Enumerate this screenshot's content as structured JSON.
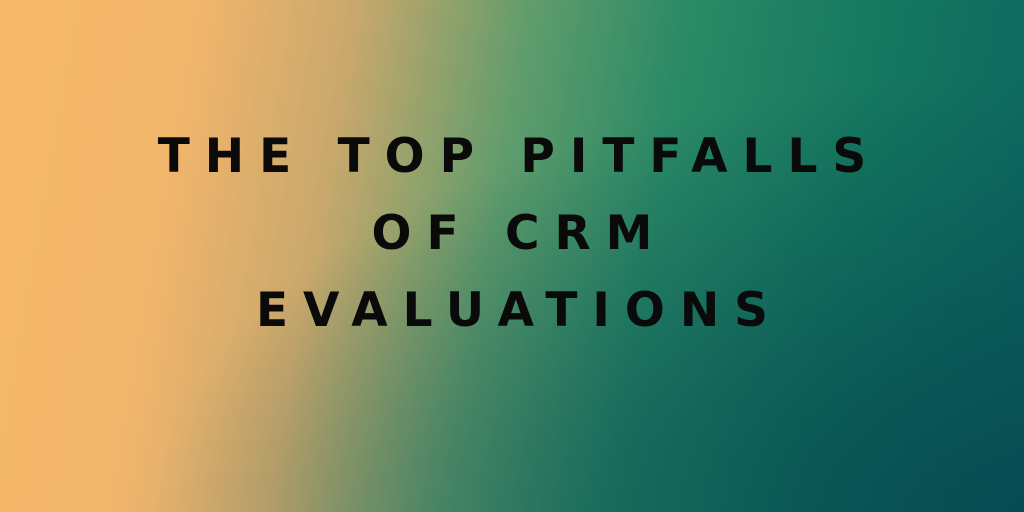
{
  "title": {
    "lines": [
      "THE TOP PITFALLS",
      "OF CRM",
      "EVALUATIONS"
    ]
  }
}
